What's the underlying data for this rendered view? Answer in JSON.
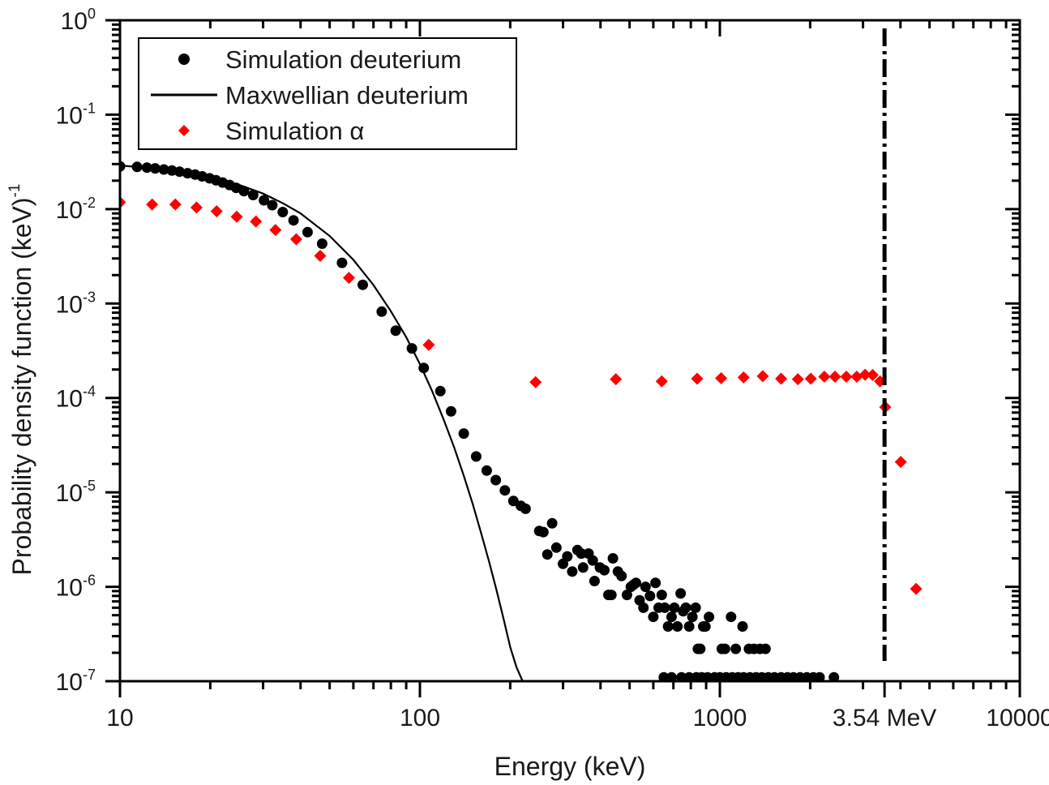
{
  "chart_data": {
    "type": "scatter",
    "title": "",
    "xlabel": "Energy (keV)",
    "ylabel": "Probability density function (keV)",
    "ylabel_superscript": "-1",
    "xscale": "log",
    "yscale": "log",
    "xlim": [
      10,
      10000
    ],
    "ylim": [
      1e-07,
      1
    ],
    "grid": false,
    "legend_position": "top-left",
    "x_ticks": [
      {
        "value": 10,
        "label": "10"
      },
      {
        "value": 100,
        "label": "100"
      },
      {
        "value": 1000,
        "label": "1000"
      },
      {
        "value": 3540,
        "label": "3.54 MeV"
      },
      {
        "value": 10000,
        "label": "10000"
      }
    ],
    "y_ticks": [
      {
        "value": 1,
        "base": "10",
        "exp": "0"
      },
      {
        "value": 0.1,
        "base": "10",
        "exp": "-1"
      },
      {
        "value": 0.01,
        "base": "10",
        "exp": "-2"
      },
      {
        "value": 0.001,
        "base": "10",
        "exp": "-3"
      },
      {
        "value": 0.0001,
        "base": "10",
        "exp": "-4"
      },
      {
        "value": 1e-05,
        "base": "10",
        "exp": "-5"
      },
      {
        "value": 1e-06,
        "base": "10",
        "exp": "-6"
      },
      {
        "value": 1e-07,
        "base": "10",
        "exp": "-7"
      }
    ],
    "annotations": [
      {
        "type": "vertical-dash-dot-line",
        "x": 3540,
        "label": "3.54 MeV",
        "color": "#000000"
      }
    ],
    "series": [
      {
        "name": "Simulation deuterium",
        "marker": "circle",
        "color": "#000000",
        "points": [
          [
            10.0,
            0.0284
          ],
          [
            11.4,
            0.028
          ],
          [
            12.3,
            0.0275
          ],
          [
            13.1,
            0.027
          ],
          [
            14.0,
            0.0263
          ],
          [
            14.9,
            0.0256
          ],
          [
            15.8,
            0.0249
          ],
          [
            16.8,
            0.024
          ],
          [
            17.8,
            0.0232
          ],
          [
            18.8,
            0.0222
          ],
          [
            19.9,
            0.0212
          ],
          [
            20.9,
            0.0202
          ],
          [
            22.0,
            0.0191
          ],
          [
            23.2,
            0.018
          ],
          [
            24.4,
            0.0168
          ],
          [
            25.9,
            0.0155
          ],
          [
            27.8,
            0.0141
          ],
          [
            30.2,
            0.0124
          ],
          [
            32.2,
            0.011
          ],
          [
            34.9,
            0.0093
          ],
          [
            37.9,
            0.0076
          ],
          [
            42.2,
            0.0057
          ],
          [
            47.2,
            0.0043
          ],
          [
            55.0,
            0.0027
          ],
          [
            64.5,
            0.00158
          ],
          [
            74.6,
            0.00082
          ],
          [
            83.0,
            0.000515
          ],
          [
            94.0,
            0.000335
          ],
          [
            103.0,
            0.000208
          ],
          [
            117.0,
            0.000118
          ],
          [
            127.0,
            7.2e-05
          ],
          [
            140.0,
            4.2e-05
          ],
          [
            154.0,
            2.4e-05
          ],
          [
            167.0,
            1.7e-05
          ],
          [
            179.0,
            1.35e-05
          ],
          [
            192.0,
            1.05e-05
          ],
          [
            205.0,
            8.1e-06
          ],
          [
            217.0,
            7.2e-06
          ],
          [
            225.0,
            6.7e-06
          ],
          [
            250.0,
            3.9e-06
          ],
          [
            258.0,
            3.8e-06
          ],
          [
            276.0,
            4.7e-06
          ],
          [
            266.0,
            2.2e-06
          ],
          [
            285.0,
            2.6e-06
          ],
          [
            300.0,
            1.75e-06
          ],
          [
            310.0,
            2.1e-06
          ],
          [
            322.0,
            1.45e-06
          ],
          [
            335.0,
            2.45e-06
          ],
          [
            345.0,
            2.25e-06
          ],
          [
            350.0,
            1.6e-06
          ],
          [
            365.0,
            2.25e-06
          ],
          [
            377.0,
            1.9e-06
          ],
          [
            382.0,
            1.15e-06
          ],
          [
            398.0,
            1.6e-06
          ],
          [
            412.0,
            1.5e-06
          ],
          [
            425.0,
            8.2e-07
          ],
          [
            435.0,
            8.2e-07
          ],
          [
            440.0,
            2e-06
          ],
          [
            457.0,
            1.45e-06
          ],
          [
            470.0,
            1.3e-06
          ],
          [
            490.0,
            8.2e-07
          ],
          [
            505.0,
            1e-06
          ],
          [
            515.0,
            1.05e-06
          ],
          [
            525.0,
            1.1e-06
          ],
          [
            540.0,
            7.2e-07
          ],
          [
            556.0,
            6e-07
          ],
          [
            565.0,
            1e-06
          ],
          [
            585.0,
            8e-07
          ],
          [
            600.0,
            4.8e-07
          ],
          [
            610.0,
            1.1e-06
          ],
          [
            625.0,
            6e-07
          ],
          [
            640.0,
            8.2e-07
          ],
          [
            655.0,
            6e-07
          ],
          [
            672.0,
            3.8e-07
          ],
          [
            690.0,
            4.8e-07
          ],
          [
            705.0,
            6e-07
          ],
          [
            722.0,
            3.8e-07
          ],
          [
            740.0,
            8.5e-07
          ],
          [
            755.0,
            5.5e-07
          ],
          [
            770.0,
            6e-07
          ],
          [
            790.0,
            3.8e-07
          ],
          [
            810.0,
            4.8e-07
          ],
          [
            830.0,
            6e-07
          ],
          [
            845.0,
            2.2e-07
          ],
          [
            860.0,
            2.2e-07
          ],
          [
            880.0,
            3.8e-07
          ],
          [
            895.0,
            3.8e-07
          ],
          [
            920.0,
            4.8e-07
          ],
          [
            1015.0,
            2.2e-07
          ],
          [
            1040.0,
            2.2e-07
          ],
          [
            1090.0,
            4.8e-07
          ],
          [
            1130.0,
            2.2e-07
          ],
          [
            1190.0,
            3.8e-07
          ],
          [
            1250.0,
            2.2e-07
          ],
          [
            1300.0,
            2.2e-07
          ],
          [
            1360.0,
            2.2e-07
          ],
          [
            1420.0,
            2.2e-07
          ],
          [
            650.0,
            1.1e-07
          ],
          [
            690.0,
            1.1e-07
          ],
          [
            745.0,
            1.1e-07
          ],
          [
            790.0,
            1.1e-07
          ],
          [
            835.0,
            1.1e-07
          ],
          [
            870.0,
            1.1e-07
          ],
          [
            910.0,
            1.1e-07
          ],
          [
            960.0,
            1.1e-07
          ],
          [
            1000.0,
            1.1e-07
          ],
          [
            1050.0,
            1.1e-07
          ],
          [
            1100.0,
            1.1e-07
          ],
          [
            1150.0,
            1.1e-07
          ],
          [
            1200.0,
            1.1e-07
          ],
          [
            1260.0,
            1.1e-07
          ],
          [
            1320.0,
            1.1e-07
          ],
          [
            1380.0,
            1.1e-07
          ],
          [
            1450.0,
            1.1e-07
          ],
          [
            1520.0,
            1.1e-07
          ],
          [
            1600.0,
            1.1e-07
          ],
          [
            1680.0,
            1.1e-07
          ],
          [
            1760.0,
            1.1e-07
          ],
          [
            1850.0,
            1.1e-07
          ],
          [
            1950.0,
            1.1e-07
          ],
          [
            2050.0,
            1.1e-07
          ],
          [
            2150.0,
            1.1e-07
          ],
          [
            2400.0,
            1.1e-07
          ]
        ]
      },
      {
        "name": "Maxwellian deuterium",
        "marker": "line",
        "color": "#000000",
        "points": [
          [
            10,
            0.029
          ],
          [
            15,
            0.0257
          ],
          [
            20,
            0.0218
          ],
          [
            25,
            0.018
          ],
          [
            30,
            0.0146
          ],
          [
            35,
            0.0115
          ],
          [
            40,
            0.009
          ],
          [
            50,
            0.0052
          ],
          [
            60,
            0.0029
          ],
          [
            70,
            0.00157
          ],
          [
            80,
            0.00083
          ],
          [
            90,
            0.00044
          ],
          [
            100,
            0.000228
          ],
          [
            110,
            0.000117
          ],
          [
            120,
            5.9e-05
          ],
          [
            130,
            3e-05
          ],
          [
            140,
            1.5e-05
          ],
          [
            150,
            7.5e-06
          ],
          [
            160,
            3.7e-06
          ],
          [
            170,
            1.85e-06
          ],
          [
            180,
            9.2e-07
          ],
          [
            190,
            4.6e-07
          ],
          [
            200,
            2.3e-07
          ],
          [
            210,
            1.4e-07
          ],
          [
            220,
            1e-07
          ]
        ]
      },
      {
        "name": "Simulation α",
        "marker": "diamond",
        "color": "#ff0000",
        "points": [
          [
            10.0,
            0.0118
          ],
          [
            12.8,
            0.0112
          ],
          [
            15.3,
            0.0112
          ],
          [
            18.0,
            0.0104
          ],
          [
            21.0,
            0.0095
          ],
          [
            24.5,
            0.0083
          ],
          [
            28.4,
            0.0074
          ],
          [
            33.0,
            0.006
          ],
          [
            38.7,
            0.0048
          ],
          [
            46.5,
            0.0032
          ],
          [
            58.0,
            0.00187
          ],
          [
            107.0,
            0.000365
          ],
          [
            243.0,
            0.000147
          ],
          [
            450.0,
            0.000158
          ],
          [
            640.0,
            0.00015
          ],
          [
            840.0,
            0.00016
          ],
          [
            1010.0,
            0.000162
          ],
          [
            1200.0,
            0.000165
          ],
          [
            1390.0,
            0.00017
          ],
          [
            1600.0,
            0.00016
          ],
          [
            1820.0,
            0.000158
          ],
          [
            2010.0,
            0.00016
          ],
          [
            2230.0,
            0.000168
          ],
          [
            2420.0,
            0.000168
          ],
          [
            2640.0,
            0.000168
          ],
          [
            2860.0,
            0.000168
          ],
          [
            3050.0,
            0.000176
          ],
          [
            3230.0,
            0.000175
          ],
          [
            3420.0,
            0.00015
          ],
          [
            3560.0,
            8e-05
          ],
          [
            4010.0,
            2.1e-05
          ],
          [
            4510.0,
            9.5e-07
          ]
        ]
      }
    ]
  }
}
